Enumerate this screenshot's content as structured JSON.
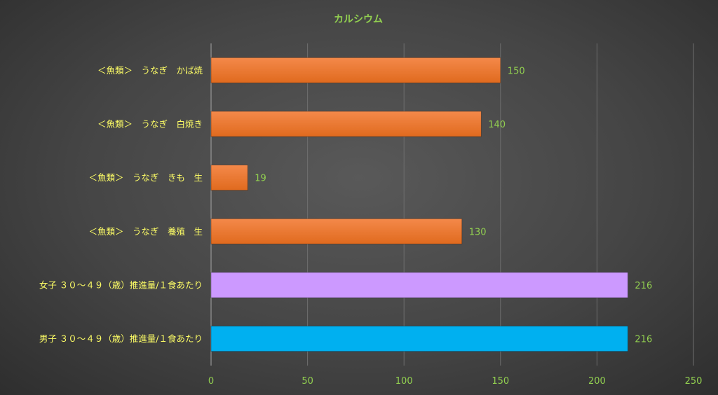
{
  "chart_data": {
    "type": "bar",
    "orientation": "horizontal",
    "title": "カルシウム",
    "categories": [
      "＜魚類＞　うなぎ　かば焼",
      "＜魚類＞　うなぎ　白焼き",
      "＜魚類＞　うなぎ　きも　生",
      "＜魚類＞　うなぎ　養殖　生",
      "女子 ３０～４９（歳）推進量/１食あたり",
      "男子 ３０～４９（歳）推進量/１食あたり"
    ],
    "values": [
      150,
      140,
      19,
      130,
      216,
      216
    ],
    "bar_colors": [
      "#ed7d31",
      "#ed7d31",
      "#ed7d31",
      "#ed7d31",
      "#cc99ff",
      "#00b0f0"
    ],
    "xlim": [
      0,
      250
    ],
    "xticks": [
      0,
      50,
      100,
      150,
      200,
      250
    ],
    "xlabel": "",
    "ylabel": "",
    "grid": true,
    "legend": "none",
    "colors": {
      "title": "#92d050",
      "category_labels": "#ffff66",
      "tick_labels": "#92d050",
      "data_labels": "#92d050",
      "gridlines": "#6e6e6e",
      "axis_line": "#a6a6a6"
    }
  }
}
